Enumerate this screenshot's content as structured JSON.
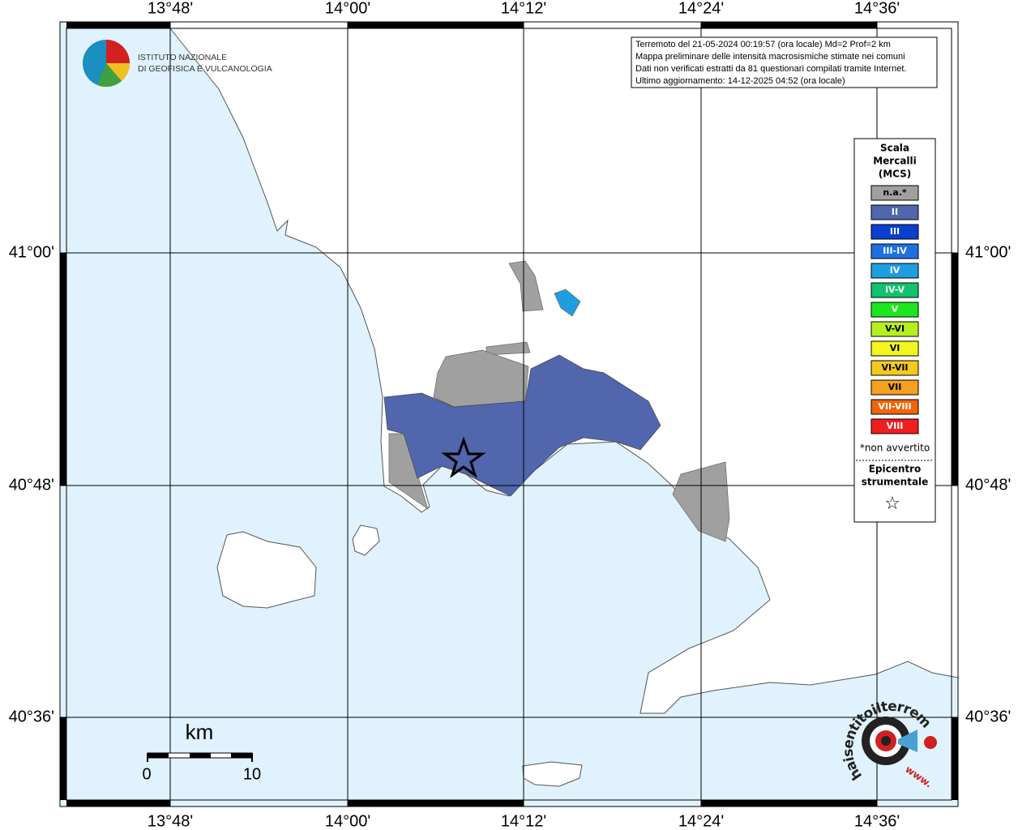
{
  "frame": {
    "lon_labels": [
      "13°48'",
      "14°00'",
      "14°12'",
      "14°24'",
      "14°36'"
    ],
    "lat_labels": [
      "41°00'",
      "40°48'",
      "40°36'"
    ]
  },
  "logo": {
    "lines": [
      "ISTITUTO NAZIONALE",
      "DI GEOFISICA E VULCANOLOGIA"
    ]
  },
  "info": {
    "lines": [
      "Terremoto del 21-05-2024 00:19:57 (ora locale) Md=2 Prof=2 km",
      "Mappa preliminare delle intensità macrosismiche stimate nei comuni",
      "Dati non verificati estratti da 81 questionari compilati tramite Internet.",
      "Ultimo aggiornamento: 14-12-2025 04:52 (ora locale)"
    ]
  },
  "legend": {
    "title": [
      "Scala",
      "Mercalli",
      "(MCS)"
    ],
    "items": [
      {
        "label": "n.a.*",
        "color": "#a0a0a0"
      },
      {
        "label": "II",
        "color": "#5166ad"
      },
      {
        "label": "III",
        "color": "#0a3fcf"
      },
      {
        "label": "III-IV",
        "color": "#1e70e0"
      },
      {
        "label": "IV",
        "color": "#1e9ee0"
      },
      {
        "label": "IV-V",
        "color": "#12c36e"
      },
      {
        "label": "V",
        "color": "#1ee61e"
      },
      {
        "label": "V-VI",
        "color": "#b4f01e"
      },
      {
        "label": "VI",
        "color": "#f5f51e"
      },
      {
        "label": "VI-VII",
        "color": "#f5c81e"
      },
      {
        "label": "VII",
        "color": "#f5a01e"
      },
      {
        "label": "VII-VIII",
        "color": "#f0640a"
      },
      {
        "label": "VIII",
        "color": "#f01e1e"
      }
    ],
    "note": "*non avvertito",
    "epicenter": [
      "Epicentro",
      "strumentale"
    ],
    "star": "☆"
  },
  "scale": {
    "unit": "km",
    "labels": [
      "0",
      "10"
    ]
  },
  "badge": {
    "text": "haisentitoilterremoto.it",
    "www": "www."
  }
}
